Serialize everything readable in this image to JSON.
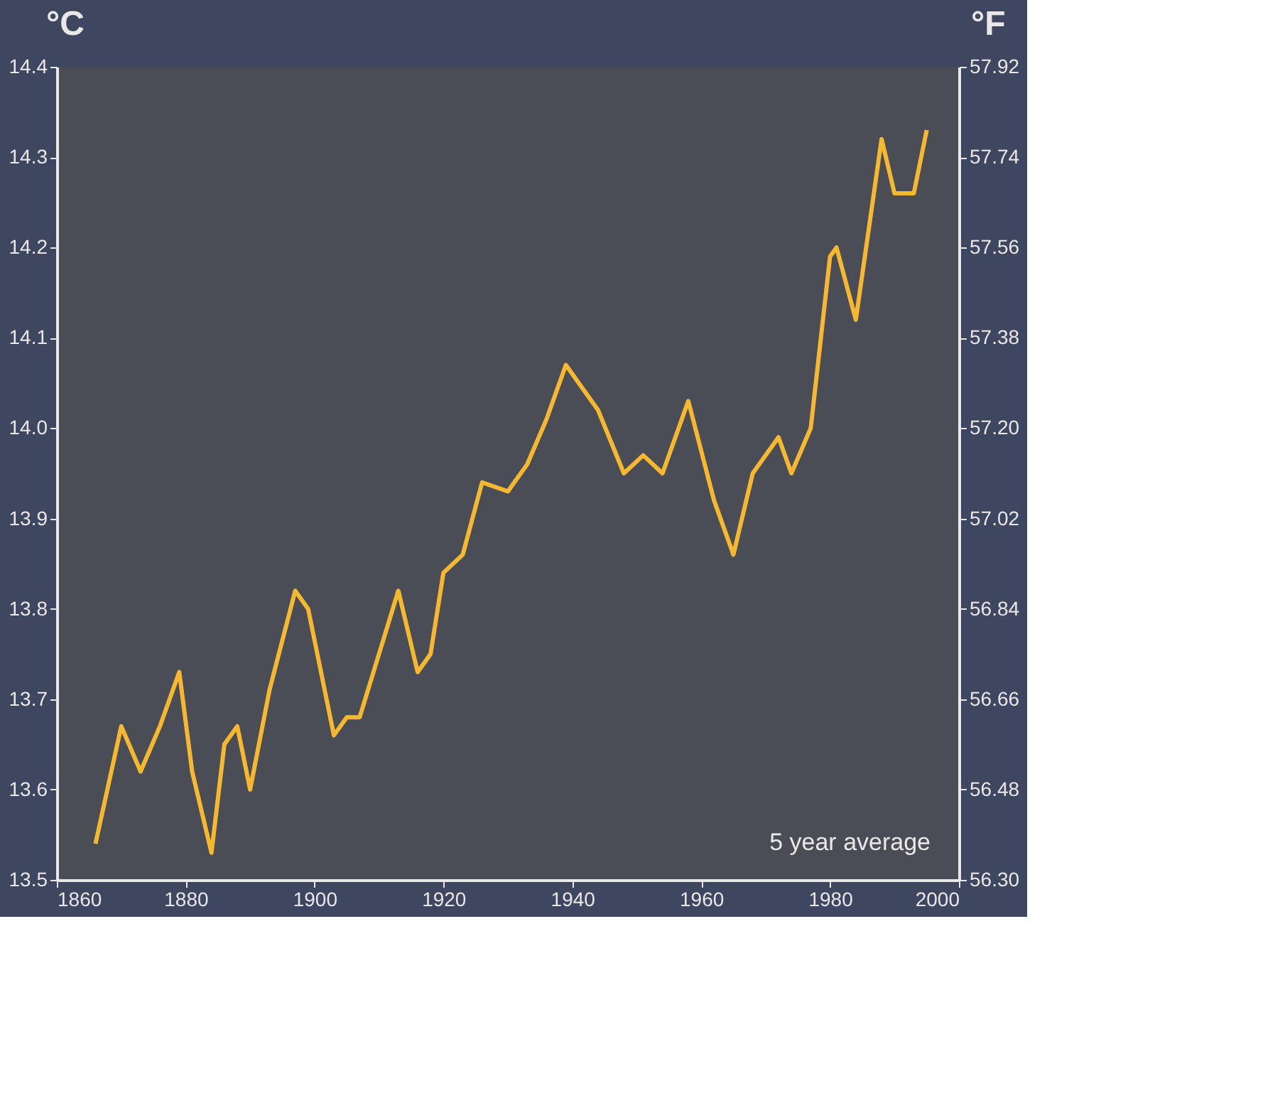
{
  "chart_data": {
    "type": "line",
    "ylabel": "°C",
    "y2label": "°F",
    "x": [
      1866,
      1870,
      1873,
      1876,
      1879,
      1881,
      1884,
      1886,
      1888,
      1890,
      1893,
      1897,
      1899,
      1903,
      1905,
      1907,
      1913,
      1916,
      1918,
      1920,
      1923,
      1926,
      1930,
      1933,
      1936,
      1939,
      1941,
      1944,
      1948,
      1951,
      1954,
      1958,
      1962,
      1965,
      1968,
      1972,
      1974,
      1977,
      1980,
      1981,
      1984,
      1987,
      1988,
      1990,
      1993,
      1995
    ],
    "series": [
      {
        "color": "#f6b830",
        "values": [
          13.54,
          13.67,
          13.62,
          13.67,
          13.73,
          13.62,
          13.53,
          13.65,
          13.67,
          13.6,
          13.71,
          13.82,
          13.8,
          13.66,
          13.68,
          13.68,
          13.82,
          13.73,
          13.75,
          13.84,
          13.86,
          13.94,
          13.93,
          13.96,
          14.01,
          14.07,
          14.05,
          14.02,
          13.95,
          13.97,
          13.95,
          14.03,
          13.92,
          13.86,
          13.95,
          13.99,
          13.95,
          14.0,
          14.19,
          14.2,
          14.12,
          14.27,
          14.32,
          14.26,
          14.26,
          14.33
        ]
      }
    ],
    "xlim": [
      1860,
      2000
    ],
    "xticks": [
      1860,
      1880,
      1900,
      1920,
      1940,
      1960,
      1980,
      2000
    ],
    "ylim": [
      13.5,
      14.4
    ],
    "yticks": [
      {
        "value": 13.5,
        "label": "13.5"
      },
      {
        "value": 13.6,
        "label": "13.6"
      },
      {
        "value": 13.7,
        "label": "13.7"
      },
      {
        "value": 13.8,
        "label": "13.8"
      },
      {
        "value": 13.9,
        "label": "13.9"
      },
      {
        "value": 14.0,
        "label": "14.0"
      },
      {
        "value": 14.1,
        "label": "14.1"
      },
      {
        "value": 14.2,
        "label": "14.2"
      },
      {
        "value": 14.3,
        "label": "14.3"
      },
      {
        "value": 14.4,
        "label": "14.4"
      }
    ],
    "y2lim": [
      56.3,
      57.92
    ],
    "y2ticks": [
      {
        "value": 56.3,
        "label": "56.30"
      },
      {
        "value": 56.48,
        "label": "56.48"
      },
      {
        "value": 56.66,
        "label": "56.66"
      },
      {
        "value": 56.84,
        "label": "56.84"
      },
      {
        "value": 57.02,
        "label": "57.02"
      },
      {
        "value": 57.2,
        "label": "57.20"
      },
      {
        "value": 57.38,
        "label": "57.38"
      },
      {
        "value": 57.56,
        "label": "57.56"
      },
      {
        "value": 57.74,
        "label": "57.74"
      },
      {
        "value": 57.92,
        "label": "57.92"
      }
    ],
    "annotations": [
      "5 year average"
    ],
    "grid": false
  }
}
